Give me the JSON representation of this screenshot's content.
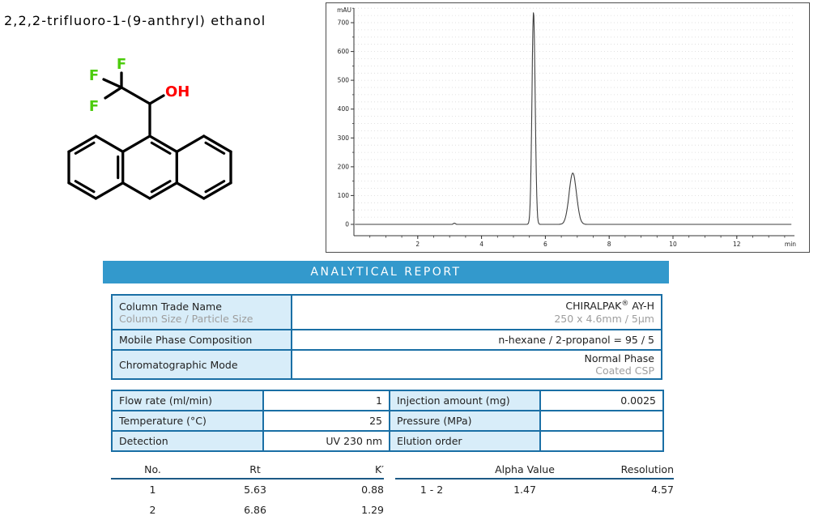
{
  "compound": {
    "title": "2,2,2-trifluoro-1-(9-anthryl) ethanol",
    "atoms": {
      "f1": "F",
      "f2": "F",
      "f3": "F",
      "oh": "OH"
    },
    "colors": {
      "fluorine": "#4CCC0C",
      "hydroxyl": "#FF0000",
      "bond": "#000000"
    }
  },
  "chart_data": {
    "type": "line",
    "title": "",
    "x_unit": "min",
    "y_unit": "mAU",
    "x_range": [
      0,
      13.8
    ],
    "y_range": [
      -40,
      770
    ],
    "x_ticks": [
      2,
      4,
      6,
      8,
      10,
      12
    ],
    "y_ticks": [
      0,
      100,
      200,
      300,
      400,
      500,
      600,
      700
    ],
    "grid": "dotted-horizontal",
    "legend": "none",
    "baseline_mAU": 0,
    "series": [
      {
        "name": "UV 230 nm chromatogram",
        "peaks": [
          {
            "no": "artifact",
            "rt_min": 3.15,
            "height_mAU": 4,
            "sigma_min": 0.03
          },
          {
            "no": 1,
            "rt_min": 5.63,
            "height_mAU": 739,
            "sigma_min": 0.05
          },
          {
            "no": 2,
            "rt_min": 6.86,
            "height_mAU": 178,
            "sigma_min": 0.115
          }
        ]
      }
    ],
    "line_color": "#3f3f3f"
  },
  "report": {
    "header": "ANALYTICAL REPORT",
    "header_bg": "#3399CC",
    "column_table": {
      "rows": [
        {
          "label": "Column Trade Name",
          "sublabel": "Column Size / Particle Size",
          "value": "CHIRALPAK",
          "value_sup": "®",
          "value_suffix": " AY-H",
          "subvalue": "250 x 4.6mm / 5µm"
        },
        {
          "label": "Mobile Phase Composition",
          "value": "n-hexane / 2-propanol = 95 / 5"
        },
        {
          "label": "Chromatographic Mode",
          "value": "Normal Phase",
          "subvalue": "Coated CSP"
        }
      ]
    },
    "conditions_table": {
      "rows": [
        [
          {
            "label": "Flow rate (ml/min)",
            "value": "1"
          },
          {
            "label": "Injection amount (mg)",
            "value": "0.0025"
          }
        ],
        [
          {
            "label": "Temperature (°C)",
            "value": "25"
          },
          {
            "label": "Pressure (MPa)",
            "value": ""
          }
        ],
        [
          {
            "label": "Detection",
            "value": "UV 230 nm"
          },
          {
            "label": "Elution order",
            "value": ""
          }
        ]
      ]
    },
    "results": {
      "peaks_table": {
        "headers": [
          "No.",
          "Rt",
          "K′"
        ],
        "rows": [
          [
            "1",
            "5.63",
            "0.88"
          ],
          [
            "2",
            "6.86",
            "1.29"
          ]
        ]
      },
      "separation_table": {
        "headers": [
          "Alpha Value",
          "Resolution"
        ],
        "rows": [
          [
            "1 - 2",
            "1.47",
            "4.57"
          ]
        ]
      }
    }
  }
}
